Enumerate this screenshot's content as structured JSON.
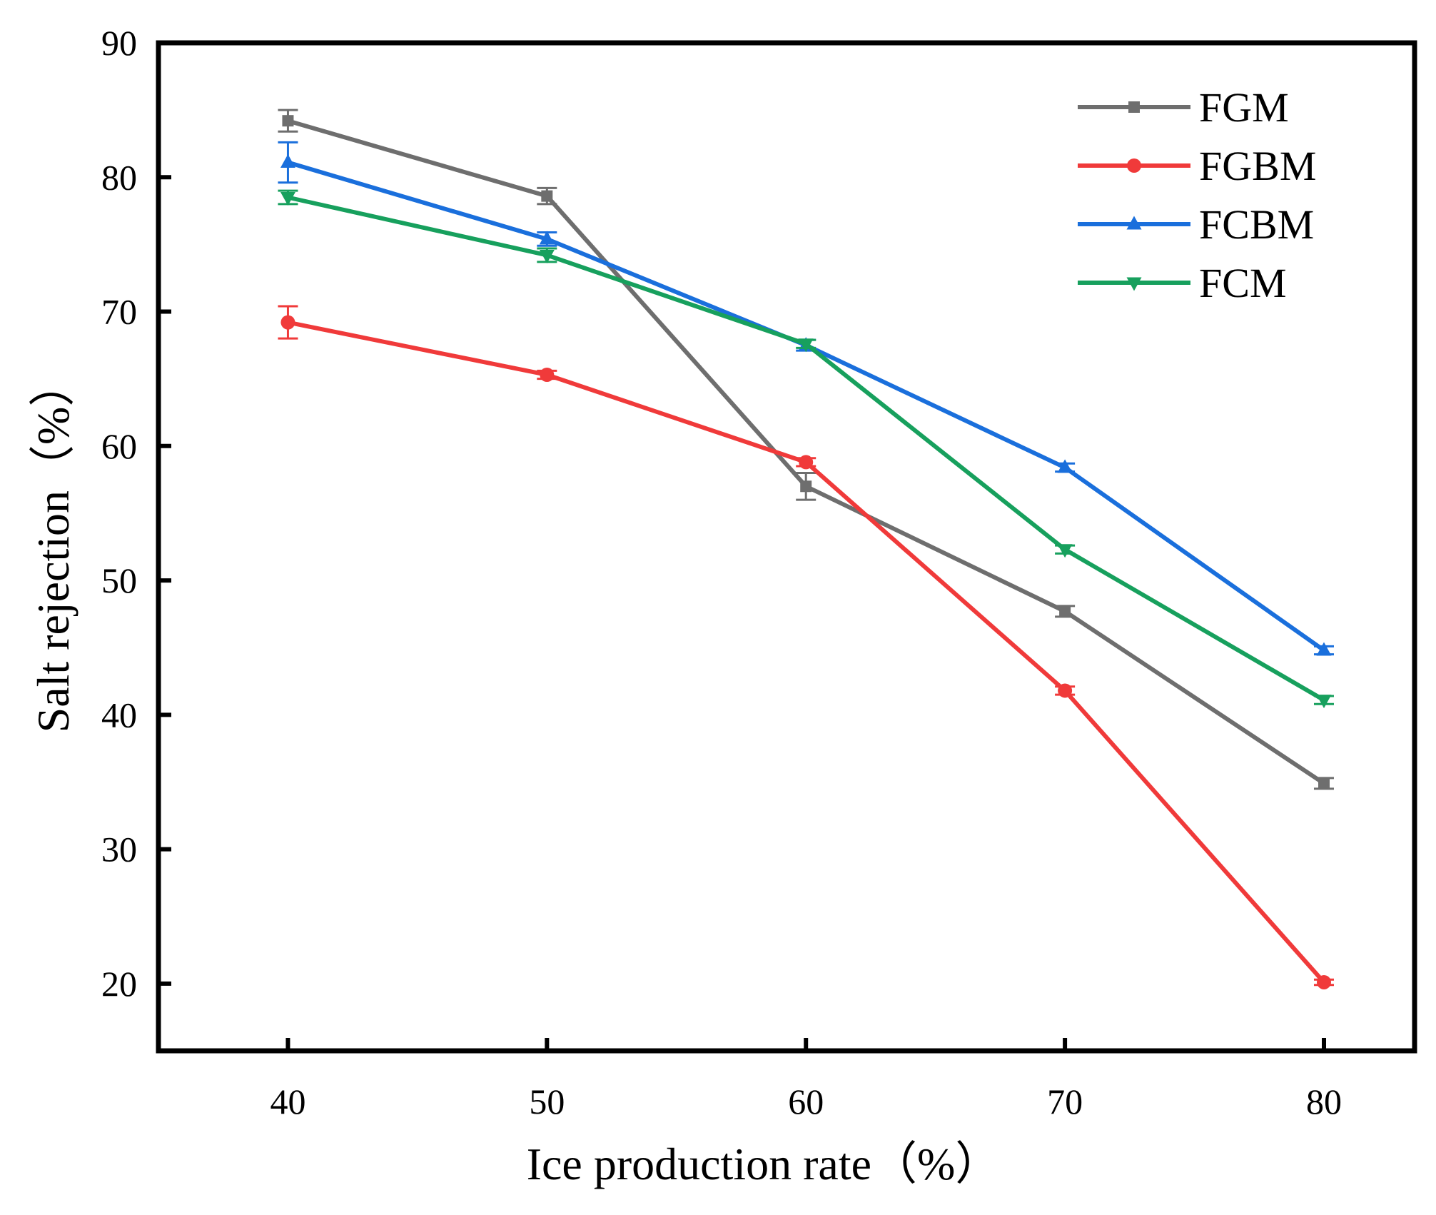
{
  "chart_data": {
    "type": "line",
    "title": "",
    "xlabel": "Ice production rate（%）",
    "ylabel": "Salt rejection（%）",
    "x": [
      40,
      50,
      60,
      70,
      80
    ],
    "x_ticks": [
      "40",
      "50",
      "60",
      "70",
      "80"
    ],
    "y_ticks": [
      "20",
      "30",
      "40",
      "50",
      "60",
      "70",
      "80",
      "90"
    ],
    "xlim": [
      35,
      83.5
    ],
    "ylim": [
      15,
      90
    ],
    "grid": false,
    "legend_position": "top-right",
    "series": [
      {
        "name": "FGM",
        "color": "#6e6e6e",
        "marker": "square",
        "values": [
          84.2,
          78.6,
          57.0,
          47.7,
          34.9
        ],
        "errors": [
          0.8,
          0.6,
          1.0,
          0.4,
          0.4
        ]
      },
      {
        "name": "FGBM",
        "color": "#f03a3a",
        "marker": "circle",
        "values": [
          69.2,
          65.3,
          58.8,
          41.8,
          20.1
        ],
        "errors": [
          1.2,
          0.3,
          0.3,
          0.3,
          0.2
        ]
      },
      {
        "name": "FCBM",
        "color": "#1a6fdc",
        "marker": "triangle-up",
        "values": [
          81.1,
          75.4,
          67.5,
          58.4,
          44.8
        ],
        "errors": [
          1.5,
          0.5,
          0.4,
          0.3,
          0.3
        ]
      },
      {
        "name": "FCM",
        "color": "#17a05d",
        "marker": "triangle-down",
        "values": [
          78.5,
          74.2,
          67.6,
          52.3,
          41.1
        ],
        "errors": [
          0.5,
          0.5,
          0.3,
          0.3,
          0.3
        ]
      }
    ]
  }
}
